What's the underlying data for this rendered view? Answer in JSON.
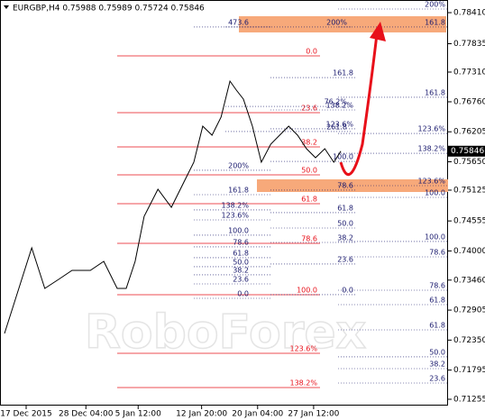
{
  "chart_data": {
    "type": "line",
    "title": "EURGBP,H4 0.75988 0.75989 0.75724 0.75846",
    "watermark": "RoboForex",
    "x": [
      1.2,
      8.5,
      12,
      15.7,
      19.3,
      24.2,
      27.8,
      31.4,
      33.8,
      36.2,
      38.6,
      42.3,
      45.9,
      49.5,
      51.9,
      54.3,
      56.8,
      59.2,
      61.6,
      63.3,
      65.2,
      67.6,
      70,
      72.5,
      74.9,
      77.3,
      79.7,
      82.1,
      84.5,
      87,
      89.4,
      91.3
    ],
    "series": [
      {
        "name": "EURGBP",
        "color": "#000000",
        "values": [
          0.72472,
          0.74057,
          0.73306,
          0.73473,
          0.7364,
          0.7364,
          0.73807,
          0.73306,
          0.73306,
          0.73807,
          0.74641,
          0.75141,
          0.74808,
          0.75308,
          0.75642,
          0.76309,
          0.76142,
          0.76476,
          0.77143,
          0.76976,
          0.76809,
          0.76309,
          0.75642,
          0.75975,
          0.76142,
          0.76309,
          0.76142,
          0.75892,
          0.75725,
          0.75892,
          0.75642,
          0.75846
        ]
      }
    ],
    "xlim": [
      0,
      120
    ],
    "xticks": [
      {
        "value": 7,
        "label": "17 Dec 2015"
      },
      {
        "value": 23,
        "label": "28 Dec 04:00"
      },
      {
        "value": 37,
        "label": "5 Jan 12:00"
      },
      {
        "value": 54,
        "label": "12 Jan 20:00"
      },
      {
        "value": 69,
        "label": "20 Jan 04:00"
      },
      {
        "value": 84,
        "label": "27 Jan 12:00"
      }
    ],
    "ylim": [
      0.71138,
      0.78644
    ],
    "yticks": [
      {
        "value": 0.7841,
        "label": "0.78410"
      },
      {
        "value": 0.77835,
        "label": "0.77835"
      },
      {
        "value": 0.7731,
        "label": "0.77310"
      },
      {
        "value": 0.7676,
        "label": "0.76760"
      },
      {
        "value": 0.76205,
        "label": "0.76205"
      },
      {
        "value": 0.7565,
        "label": "0.75650"
      },
      {
        "value": 0.75125,
        "label": "0.75125"
      },
      {
        "value": 0.74555,
        "label": "0.74555"
      },
      {
        "value": 0.74,
        "label": "0.74000"
      },
      {
        "value": 0.7346,
        "label": "0.73460"
      },
      {
        "value": 0.72905,
        "label": "0.72905"
      },
      {
        "value": 0.7235,
        "label": "0.72350"
      },
      {
        "value": 0.71795,
        "label": "0.71795"
      },
      {
        "value": 0.71255,
        "label": "0.71255"
      }
    ],
    "zone_color": "#f7a97a",
    "zones": [
      [
        0.78044,
        0.78344
      ],
      [
        0.75091,
        0.75325
      ]
    ],
    "arrow_color": "#e8101a",
    "level_groups": [
      {
        "color": "#e8101a",
        "levels": [
          {
            "label": "0.0",
            "value": 0.7761
          },
          {
            "label": "23.6",
            "value": 0.76559
          },
          {
            "label": "38.2",
            "value": 0.75925
          },
          {
            "label": "50.0",
            "value": 0.75408
          },
          {
            "label": "61.8",
            "value": 0.74874
          },
          {
            "label": "78.6",
            "value": 0.7414
          },
          {
            "label": "100.0",
            "value": 0.7319
          },
          {
            "label": "123.6%",
            "value": 0.72106
          },
          {
            "label": "138.2%",
            "value": 0.71472
          }
        ]
      },
      {
        "color": "#1a1a6e",
        "levels": [
          {
            "label": "200%",
            "value": 0.78477
          },
          {
            "label": "161.8",
            "value": 0.78144
          },
          {
            "label": "161.8",
            "value": 0.76843
          },
          {
            "label": "123.6%",
            "value": 0.76175
          },
          {
            "label": "138.2%",
            "value": 0.75808
          },
          {
            "label": "123.6%",
            "value": 0.75208
          },
          {
            "label": "100.0",
            "value": 0.74991
          },
          {
            "label": "100.0",
            "value": 0.74174
          },
          {
            "label": "78.6",
            "value": 0.7389
          },
          {
            "label": "78.6",
            "value": 0.73273
          },
          {
            "label": "61.8",
            "value": 0.73006
          },
          {
            "label": "61.8",
            "value": 0.72539
          },
          {
            "label": "50.0",
            "value": 0.72039
          },
          {
            "label": "38.2",
            "value": 0.71822
          },
          {
            "label": "23.6",
            "value": 0.71555
          }
        ]
      },
      {
        "color": "#1a1a6e",
        "levels": [
          {
            "label": "161.8",
            "value": 0.77209
          },
          {
            "label": "138.2%",
            "value": 0.76609
          },
          {
            "label": "123.6%",
            "value": 0.76259
          },
          {
            "label": "100.0",
            "value": 0.75658
          },
          {
            "label": "78.6",
            "value": 0.75125
          },
          {
            "label": "61.8",
            "value": 0.74708
          },
          {
            "label": "50.0",
            "value": 0.74424
          },
          {
            "label": "38.2",
            "value": 0.74157
          },
          {
            "label": "23.6",
            "value": 0.73757
          },
          {
            "label": "0.0",
            "value": 0.7319
          }
        ]
      },
      {
        "color": "#1a1a6e",
        "levels": [
          {
            "label": "473.6",
            "value": 0.78144
          },
          {
            "label": "200%",
            "value": 0.75492
          },
          {
            "label": "161.8",
            "value": 0.75041
          },
          {
            "label": "138.2%",
            "value": 0.74758
          },
          {
            "label": "123.6%",
            "value": 0.74574
          },
          {
            "label": "100.0",
            "value": 0.74291
          },
          {
            "label": "78.6",
            "value": 0.74074
          },
          {
            "label": "61.8",
            "value": 0.73874
          },
          {
            "label": "50.0",
            "value": 0.73707
          },
          {
            "label": "38.2",
            "value": 0.73557
          },
          {
            "label": "23.6",
            "value": 0.7339
          },
          {
            "label": "0.0",
            "value": 0.73123
          }
        ]
      },
      {
        "color": "#1a1a6e",
        "levels": [
          {
            "label": "200%",
            "value": 0.78144
          },
          {
            "label": "76.2%",
            "value": 0.76675
          },
          {
            "label": "261.8",
            "value": 0.76209
          }
        ]
      }
    ]
  }
}
